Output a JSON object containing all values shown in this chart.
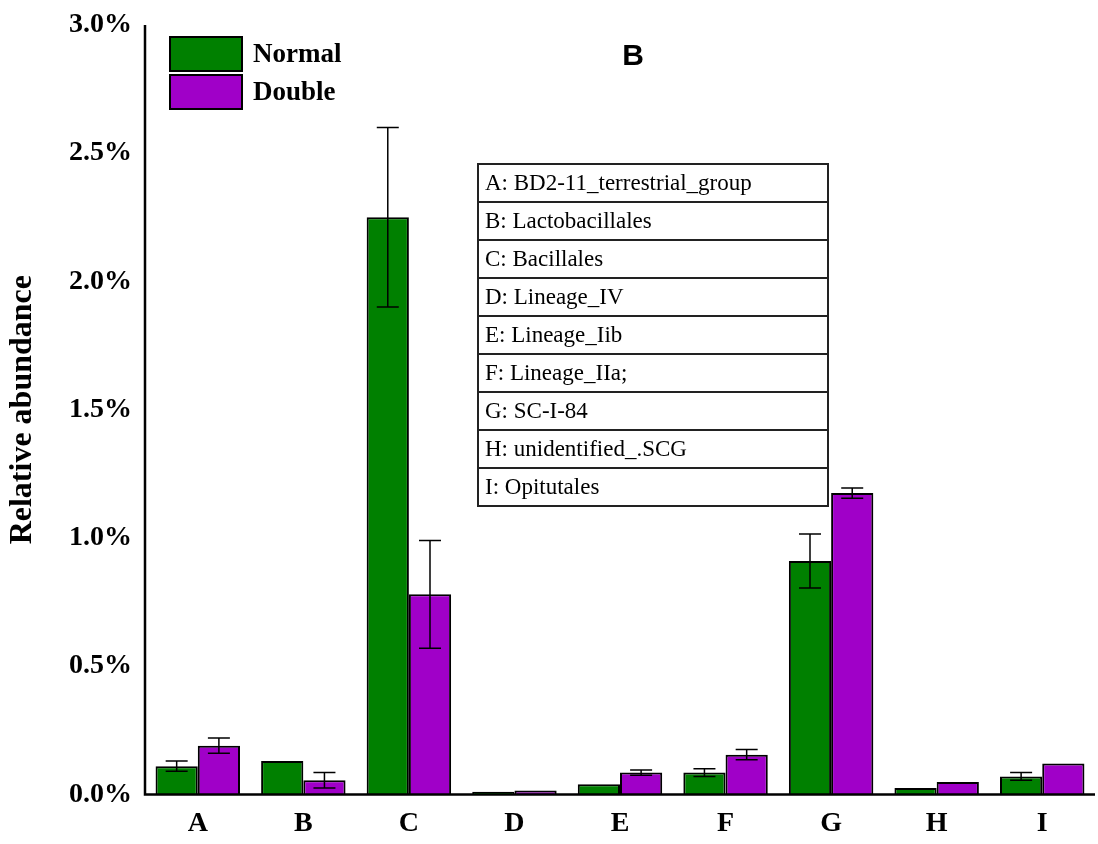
{
  "chart_data": {
    "type": "bar",
    "title": "B",
    "ylabel": "Relative abundance",
    "categories": [
      "A",
      "B",
      "C",
      "D",
      "E",
      "F",
      "G",
      "H",
      "I"
    ],
    "series": [
      {
        "name": "Normal",
        "color": "#008000",
        "values": [
          0.11,
          0.13,
          2.25,
          0.01,
          0.04,
          0.085,
          0.91,
          0.025,
          0.07
        ],
        "errors": [
          0.02,
          null,
          0.35,
          null,
          null,
          0.015,
          0.105,
          null,
          0.015
        ]
      },
      {
        "name": "Double",
        "color": "#a000c8",
        "values": [
          0.19,
          0.055,
          0.78,
          0.015,
          0.085,
          0.155,
          1.175,
          0.048,
          0.12
        ],
        "errors": [
          0.03,
          0.03,
          0.21,
          null,
          0.01,
          0.02,
          0.02,
          null,
          null
        ]
      }
    ],
    "ylim": [
      0,
      3
    ],
    "yticks": [
      {
        "value": 0,
        "label": "0.0%"
      },
      {
        "value": 0.5,
        "label": "0.5%"
      },
      {
        "value": 1,
        "label": "1.0%"
      },
      {
        "value": 1.5,
        "label": "1.5%"
      },
      {
        "value": 2,
        "label": "2.0%"
      },
      {
        "value": 2.5,
        "label": "2.5%"
      },
      {
        "value": 3,
        "label": "3.0%"
      }
    ],
    "grid": false,
    "legend": "top left",
    "annotations": [
      "A: BD2-11_terrestrial_group",
      "B: Lactobacillales",
      "C: Bacillales",
      "D: Lineage_IV",
      "E: Lineage_Iib",
      "F: Lineage_IIa;",
      "G: SC-I-84",
      "H: unidentified_.SCG",
      "I: Opitutales"
    ]
  }
}
